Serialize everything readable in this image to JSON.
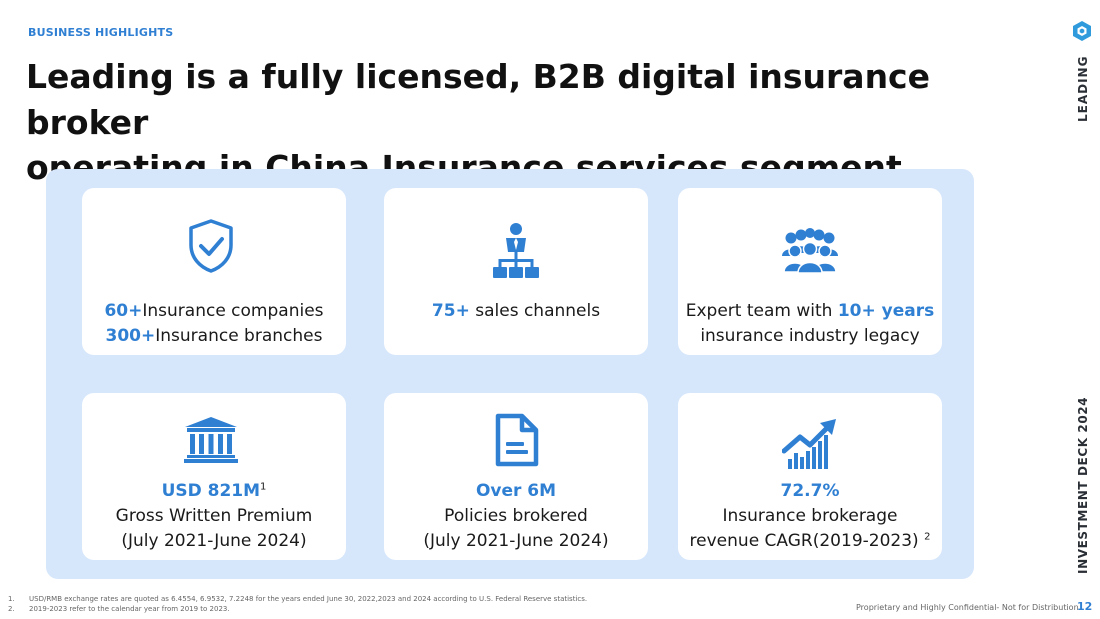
{
  "header": {
    "section_label": "BUSINESS HIGHLIGHTS",
    "title_line1": "Leading is a fully licensed, B2B digital insurance broker",
    "title_line2": "operating in China Insurance services segment"
  },
  "cards": [
    {
      "icon": "shield-check-icon",
      "line1_hl": "60+",
      "line1": "Insurance companies",
      "line2_hl": "300+",
      "line2": "Insurance branches"
    },
    {
      "icon": "org-hierarchy-icon",
      "line1_hl": "75+",
      "line1": " sales channels"
    },
    {
      "icon": "team-group-icon",
      "line1_pre": "Expert team with ",
      "line1_hl": "10+ years",
      "line2": "insurance industry legacy"
    },
    {
      "icon": "bank-building-icon",
      "line1_hl": "USD 821M",
      "line1_sup": "1",
      "line2": "Gross Written Premium",
      "line3": "(July 2021-June 2024)"
    },
    {
      "icon": "document-icon",
      "line1_hl": "Over 6M",
      "line2": "Policies brokered",
      "line3": "(July 2021-June 2024)"
    },
    {
      "icon": "growth-chart-icon",
      "line1_hl": "72.7%",
      "line2": "Insurance brokerage",
      "line3": "revenue CAGR(2019-2023)",
      "line3_sup": "2"
    }
  ],
  "sidebar": {
    "brand": "LEADING",
    "deck": "INVESTMENT DECK 2024"
  },
  "footer": {
    "notes": [
      {
        "num": "1.",
        "text": "USD/RMB exchange rates are quoted as 6.4554, 6.9532, 7.2248 for the years ended June 30, 2022,2023 and 2024 according to U.S. Federal Reserve statistics."
      },
      {
        "num": "2.",
        "text": "2019-2023 refer to the calendar year from 2019 to 2023."
      }
    ],
    "confidential": "Proprietary and Highly Confidential- Not for Distribution",
    "page_number": "12"
  },
  "colors": {
    "accent": "#2f7fd3",
    "panel": "#d6e6fb"
  }
}
